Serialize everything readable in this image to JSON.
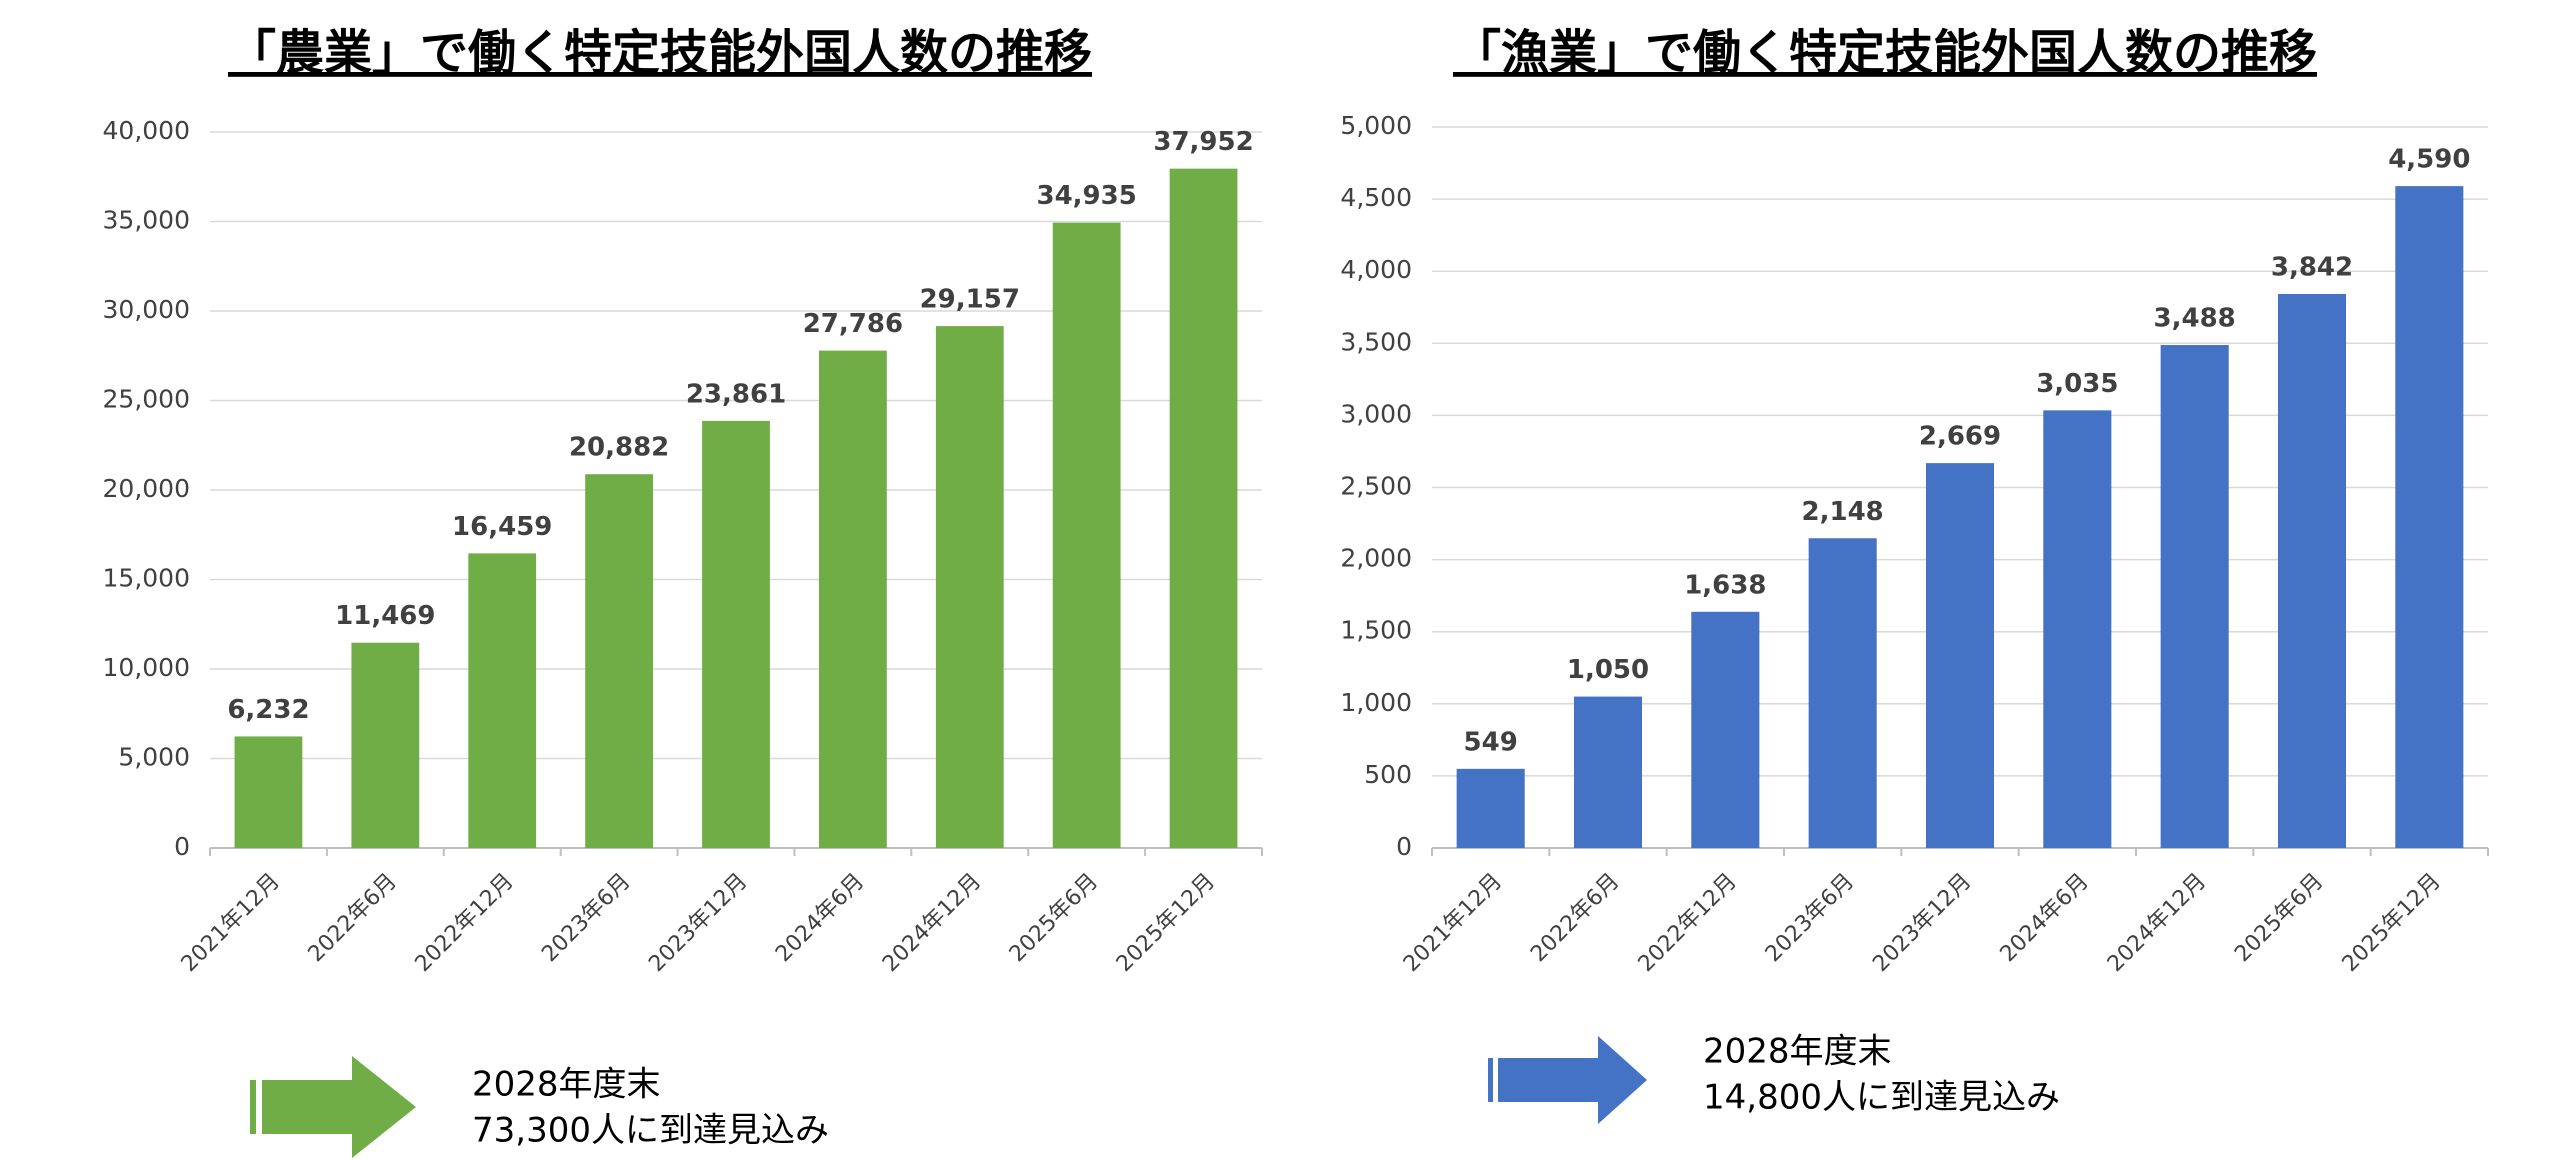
{
  "chart_data": [
    {
      "type": "bar",
      "title": "「農業」で働く特定技能外国人数の推移",
      "categories": [
        "2021年12月",
        "2022年6月",
        "2022年12月",
        "2023年6月",
        "2023年12月",
        "2024年6月",
        "2024年12月",
        "2025年6月",
        "2025年12月"
      ],
      "values": [
        6232,
        11469,
        16459,
        20882,
        23861,
        27786,
        29157,
        34935,
        37952
      ],
      "value_labels": [
        "6,232",
        "11,469",
        "16,459",
        "20,882",
        "23,861",
        "27,786",
        "29,157",
        "34,935",
        "37,952"
      ],
      "color": "#70ad47",
      "ylim": [
        0,
        40000
      ],
      "yticks": [
        0,
        {
          "value": 5000,
          "label": "5,000"
        },
        {
          "value": 10000,
          "label": "10,000"
        },
        {
          "value": 15000,
          "label": "15,000"
        },
        {
          "value": 20000,
          "label": "20,000"
        },
        {
          "value": 25000,
          "label": "25,000"
        },
        {
          "value": 30000,
          "label": "30,000"
        },
        {
          "value": 35000,
          "label": "35,000"
        },
        {
          "value": 40000,
          "label": "40,000"
        }
      ],
      "grid": true,
      "annotation": [
        "2028年度末",
        "73,300人に到達見込み"
      ]
    },
    {
      "type": "bar",
      "title": "「漁業」で働く特定技能外国人数の推移",
      "categories": [
        "2021年12月",
        "2022年6月",
        "2022年12月",
        "2023年6月",
        "2023年12月",
        "2024年6月",
        "2024年12月",
        "2025年6月",
        "2025年12月"
      ],
      "values": [
        549,
        1050,
        1638,
        2148,
        2669,
        3035,
        3488,
        3842,
        4590
      ],
      "value_labels": [
        "549",
        "1,050",
        "1,638",
        "2,148",
        "2,669",
        "3,035",
        "3,488",
        "3,842",
        "4,590"
      ],
      "color": "#4472c4",
      "ylim": [
        0,
        5000
      ],
      "yticks": [
        0,
        500,
        {
          "value": 1000,
          "label": "1,000"
        },
        {
          "value": 1500,
          "label": "1,500"
        },
        {
          "value": 2000,
          "label": "2,000"
        },
        {
          "value": 2500,
          "label": "2,500"
        },
        {
          "value": 3000,
          "label": "3,000"
        },
        {
          "value": 3500,
          "label": "3,500"
        },
        {
          "value": 4000,
          "label": "4,000"
        },
        {
          "value": 4500,
          "label": "4,500"
        },
        {
          "value": 5000,
          "label": "5,000"
        }
      ],
      "grid": true,
      "annotation": [
        "2028年度末",
        "14,800人に到達見込み"
      ]
    }
  ]
}
